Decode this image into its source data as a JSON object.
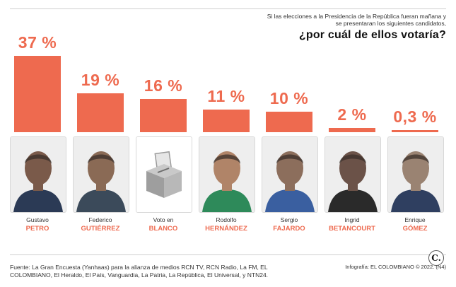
{
  "header": {
    "subtitle": "Si las elecciones a la Presidencia de la República fueran mañana y se presentaran los siguientes candidatos,",
    "question": "¿por cuál de ellos votaría?"
  },
  "chart_data": {
    "type": "bar",
    "title": "¿por cuál de ellos votaría?",
    "ylim": [
      0,
      37
    ],
    "categories": [
      "Gustavo PETRO",
      "Federico GUTIÉRREZ",
      "Voto en BLANCO",
      "Rodolfo HERNÁNDEZ",
      "Sergio FAJARDO",
      "Ingrid BETANCOURT",
      "Enrique GÓMEZ"
    ],
    "values": [
      37,
      19,
      16,
      11,
      10,
      2,
      0.3
    ],
    "labels": [
      "37 %",
      "19 %",
      "16 %",
      "11 %",
      "10 %",
      "2 %",
      "0,3 %"
    ],
    "candidates": [
      {
        "first": "Gustavo",
        "last": "PETRO",
        "label": "37 %",
        "value": 37,
        "photo": "portrait"
      },
      {
        "first": "Federico",
        "last": "GUTIÉRREZ",
        "label": "19 %",
        "value": 19,
        "photo": "portrait"
      },
      {
        "first": "Voto en",
        "last": "BLANCO",
        "label": "16 %",
        "value": 16,
        "photo": "ballot-box-icon"
      },
      {
        "first": "Rodolfo",
        "last": "HERNÁNDEZ",
        "label": "11 %",
        "value": 11,
        "photo": "portrait"
      },
      {
        "first": "Sergio",
        "last": "FAJARDO",
        "label": "10 %",
        "value": 10,
        "photo": "portrait"
      },
      {
        "first": "Ingrid",
        "last": "BETANCOURT",
        "label": "2 %",
        "value": 2,
        "photo": "portrait"
      },
      {
        "first": "Enrique",
        "last": "GÓMEZ",
        "label": "0,3 %",
        "value": 0.3,
        "photo": "portrait"
      }
    ],
    "colors": {
      "bar": "#ee6a4f",
      "label": "#ee6a4f"
    }
  },
  "footer": {
    "source": "Fuente: La Gran Encuesta (Yanhaas) para la alianza de medios RCN TV, RCN Radio, La FM, EL COLOMBIANO, El Heraldo, El País, Vanguardia, La Patria, La República, El Universal, y NTN24.",
    "credit": "Infografía: EL COLOMBIANO © 2022. (N4)",
    "logo": "C."
  }
}
